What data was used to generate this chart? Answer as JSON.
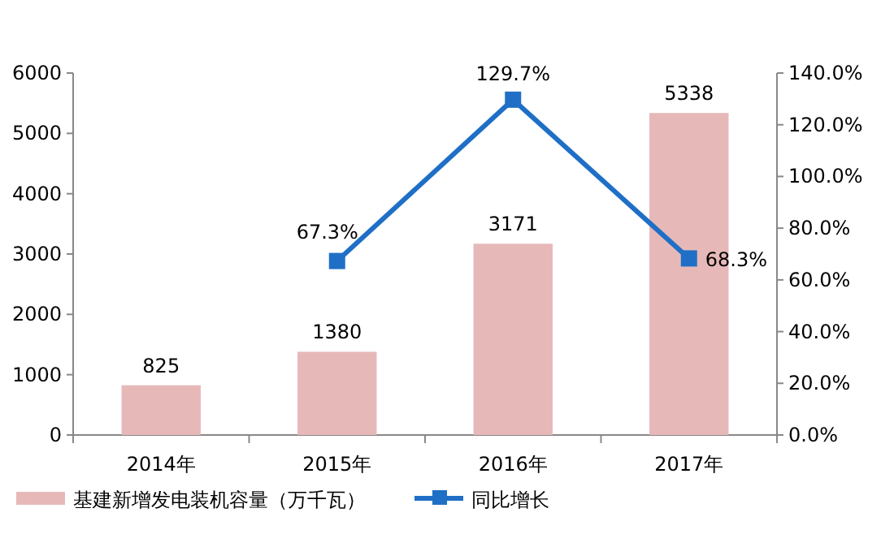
{
  "chart_data": {
    "type": "bar",
    "categories": [
      "2014年",
      "2015年",
      "2016年",
      "2017年"
    ],
    "series": [
      {
        "name": "基建新增发电装机容量（万千瓦）",
        "color": "#e6b9b8",
        "values": [
          825,
          1380,
          3171,
          5338
        ],
        "value_labels": [
          "825",
          "1380",
          "3171",
          "5338"
        ]
      },
      {
        "name": "同比增长",
        "type": "line",
        "axis": "y2",
        "color": "#1f6fc6",
        "marker": "square",
        "values": [
          null,
          67.3,
          129.7,
          68.3
        ],
        "value_labels": [
          null,
          "67.3%",
          "129.7%",
          "68.3%"
        ]
      }
    ],
    "ylim": [
      0,
      6000
    ],
    "yticks": [
      0,
      1000,
      2000,
      3000,
      4000,
      5000,
      6000
    ],
    "y2lim": [
      0,
      140
    ],
    "y2ticks": [
      {
        "value": 0,
        "label": "0.0%"
      },
      {
        "value": 20,
        "label": "20.0%"
      },
      {
        "value": 40,
        "label": "40.0%"
      },
      {
        "value": 60,
        "label": "60.0%"
      },
      {
        "value": 80,
        "label": "80.0%"
      },
      {
        "value": 100,
        "label": "100.0%"
      },
      {
        "value": 120,
        "label": "120.0%"
      },
      {
        "value": 140,
        "label": "140.0%"
      }
    ],
    "legend": "bottom",
    "grid": false
  }
}
